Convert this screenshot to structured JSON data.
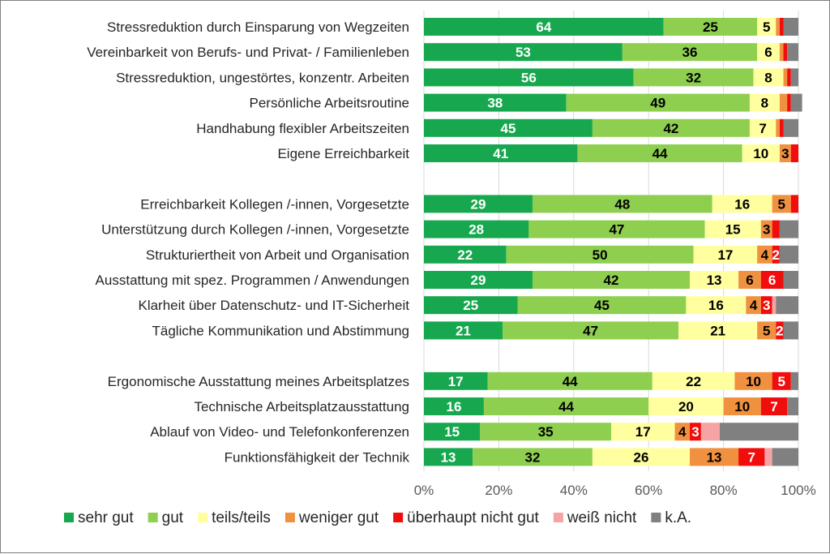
{
  "chart_data": {
    "type": "bar",
    "orientation": "horizontal",
    "stacked": true,
    "title": "",
    "xlabel": "",
    "ylabel": "",
    "xlim": [
      0,
      100
    ],
    "xticks": [
      "0%",
      "20%",
      "40%",
      "60%",
      "80%",
      "100%"
    ],
    "grid": true,
    "legend_position": "bottom",
    "series": [
      {
        "name": "sehr gut",
        "color": "#17a84f",
        "text_color": "#ffffff"
      },
      {
        "name": "gut",
        "color": "#8fcf50",
        "text_color": "#000000"
      },
      {
        "name": "teils/teils",
        "color": "#ffffa0",
        "text_color": "#000000"
      },
      {
        "name": "weniger gut",
        "color": "#f0913f",
        "text_color": "#000000"
      },
      {
        "name": "überhaupt nicht gut",
        "color": "#f20d0d",
        "text_color": "#ffffff"
      },
      {
        "name": "weiß nicht",
        "color": "#f5a3a3",
        "text_color": "#000000"
      },
      {
        "name": "k.A.",
        "color": "#808080",
        "text_color": "#ffffff"
      }
    ],
    "groups": [
      [
        {
          "label": "Stressreduktion durch Einsparung von Wegzeiten",
          "values": [
            64,
            25,
            5,
            1,
            1,
            0,
            4
          ],
          "labels": [
            "64",
            "25",
            "5",
            "",
            "",
            "",
            ""
          ]
        },
        {
          "label": "Vereinbarkeit von Berufs- und Privat- / Familienleben",
          "values": [
            53,
            36,
            6,
            1,
            1,
            0,
            3
          ],
          "labels": [
            "53",
            "36",
            "6",
            "",
            "",
            "",
            ""
          ]
        },
        {
          "label": "Stressreduktion, ungestörtes, konzentr. Arbeiten",
          "values": [
            56,
            32,
            8,
            1,
            1,
            0,
            2
          ],
          "labels": [
            "56",
            "32",
            "8",
            "",
            "",
            "",
            ""
          ]
        },
        {
          "label": "Persönliche Arbeitsroutine",
          "values": [
            38,
            49,
            8,
            2,
            1,
            0,
            3
          ],
          "labels": [
            "38",
            "49",
            "8",
            "",
            "",
            "",
            ""
          ]
        },
        {
          "label": "Handhabung flexibler Arbeitszeiten",
          "values": [
            45,
            42,
            7,
            1,
            1,
            0,
            4
          ],
          "labels": [
            "45",
            "42",
            "7",
            "",
            "",
            "",
            ""
          ]
        },
        {
          "label": "Eigene Erreichbarkeit",
          "values": [
            41,
            44,
            10,
            3,
            2,
            0,
            0
          ],
          "labels": [
            "41",
            "44",
            "10",
            "3",
            "",
            "",
            ""
          ]
        }
      ],
      [
        {
          "label": "Erreichbarkeit Kollegen /-innen, Vorgesetzte",
          "values": [
            29,
            48,
            16,
            5,
            2,
            0,
            0
          ],
          "labels": [
            "29",
            "48",
            "16",
            "5",
            "",
            "",
            ""
          ]
        },
        {
          "label": "Unterstützung durch Kollegen /-innen, Vorgesetzte",
          "values": [
            28,
            47,
            15,
            3,
            2,
            0,
            5
          ],
          "labels": [
            "28",
            "47",
            "15",
            "3",
            "",
            "",
            ""
          ]
        },
        {
          "label": "Strukturiertheit von Arbeit und Organisation",
          "values": [
            22,
            50,
            17,
            4,
            2,
            0,
            5
          ],
          "labels": [
            "22",
            "50",
            "17",
            "4",
            "2",
            "",
            ""
          ]
        },
        {
          "label": "Ausstattung mit spez. Programmen /  Anwendungen",
          "values": [
            29,
            42,
            13,
            6,
            6,
            0,
            4
          ],
          "labels": [
            "29",
            "42",
            "13",
            "6",
            "6",
            "",
            ""
          ]
        },
        {
          "label": "Klarheit über Datenschutz- und IT-Sicherheit",
          "values": [
            25,
            45,
            16,
            4,
            3,
            1,
            6
          ],
          "labels": [
            "25",
            "45",
            "16",
            "4",
            "3",
            "",
            ""
          ]
        },
        {
          "label": "Tägliche Kommunikation und Abstimmung",
          "values": [
            21,
            47,
            21,
            5,
            2,
            0,
            4
          ],
          "labels": [
            "21",
            "47",
            "21",
            "5",
            "2",
            "",
            ""
          ]
        }
      ],
      [
        {
          "label": "Ergonomische Ausstattung meines Arbeitsplatzes",
          "values": [
            17,
            44,
            22,
            10,
            5,
            0,
            2
          ],
          "labels": [
            "17",
            "44",
            "22",
            "10",
            "5",
            "",
            ""
          ]
        },
        {
          "label": "Technische Arbeitsplatzausstattung",
          "values": [
            16,
            44,
            20,
            10,
            7,
            0,
            3
          ],
          "labels": [
            "16",
            "44",
            "20",
            "10",
            "7",
            "",
            ""
          ]
        },
        {
          "label": "Ablauf von Video- und Telefonkonferenzen",
          "values": [
            15,
            35,
            17,
            4,
            3,
            5,
            21
          ],
          "labels": [
            "15",
            "35",
            "17",
            "4",
            "3",
            "",
            ""
          ]
        },
        {
          "label": "Funktionsfähigkeit der Technik",
          "values": [
            13,
            32,
            26,
            13,
            7,
            2,
            7
          ],
          "labels": [
            "13",
            "32",
            "26",
            "13",
            "7",
            "",
            ""
          ]
        }
      ]
    ]
  }
}
